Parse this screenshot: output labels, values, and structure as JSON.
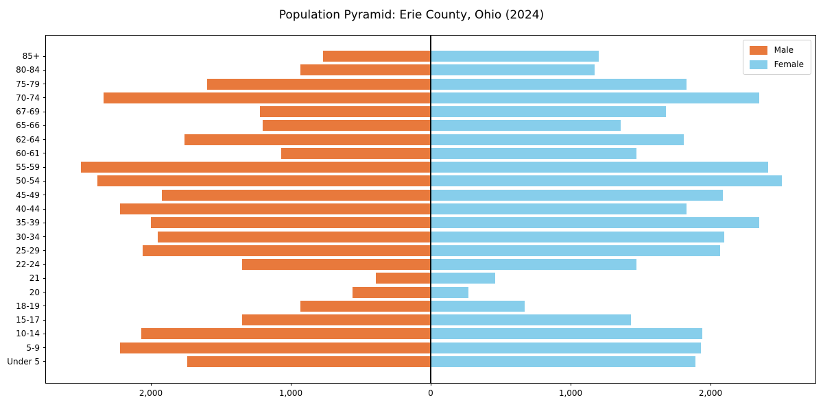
{
  "title": "Population Pyramid: Erie County, Ohio (2024)",
  "legend": {
    "male_label": "Male",
    "female_label": "Female"
  },
  "colors": {
    "male": "#E8793C",
    "female": "#87CEEB",
    "axis_line": "#000000",
    "legend_border": "#cccccc",
    "background": "#ffffff"
  },
  "chart_data": {
    "type": "bar",
    "subtype": "population-pyramid",
    "title": "Population Pyramid: Erie County, Ohio (2024)",
    "xlabel": "",
    "ylabel": "",
    "grid": false,
    "legend_position": "upper right",
    "xlim": [
      -2750,
      2750
    ],
    "categories": [
      "85+",
      "80-84",
      "75-79",
      "70-74",
      "67-69",
      "65-66",
      "62-64",
      "60-61",
      "55-59",
      "50-54",
      "45-49",
      "40-44",
      "35-39",
      "30-34",
      "25-29",
      "22-24",
      "21",
      "20",
      "18-19",
      "15-17",
      "10-14",
      "5-9",
      "Under 5"
    ],
    "series": [
      {
        "name": "Male",
        "side": "left",
        "color": "#E8793C",
        "values": [
          770,
          930,
          1600,
          2340,
          1220,
          1200,
          1760,
          1070,
          2500,
          2380,
          1920,
          2220,
          2000,
          1950,
          2060,
          1350,
          390,
          560,
          930,
          1350,
          2070,
          2220,
          1740
        ]
      },
      {
        "name": "Female",
        "side": "right",
        "color": "#87CEEB",
        "values": [
          1200,
          1170,
          1830,
          2350,
          1680,
          1360,
          1810,
          1470,
          2410,
          2510,
          2090,
          1830,
          2350,
          2100,
          2070,
          1470,
          460,
          270,
          670,
          1430,
          1940,
          1930,
          1890
        ]
      }
    ],
    "x_ticks": [
      {
        "value": -2000,
        "label": "2,000"
      },
      {
        "value": -1000,
        "label": "1,000"
      },
      {
        "value": 0,
        "label": "0"
      },
      {
        "value": 1000,
        "label": "1,000"
      },
      {
        "value": 2000,
        "label": "2,000"
      }
    ]
  }
}
